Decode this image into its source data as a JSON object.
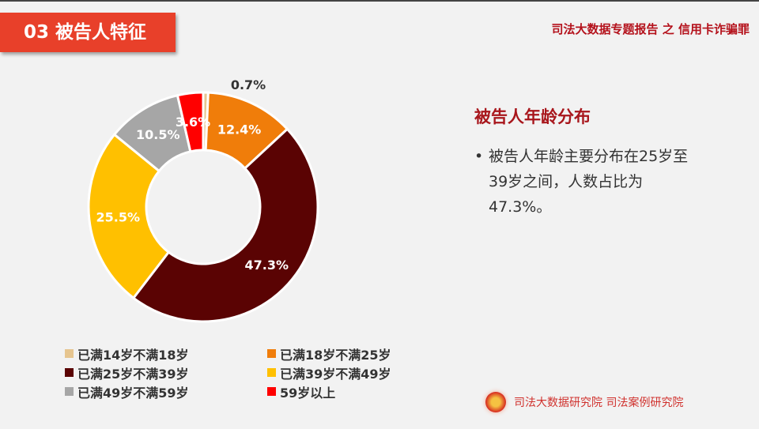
{
  "header": {
    "section_title": "03  被告人特征",
    "report_title": "司法大数据专题报告 之 信用卡诈骗罪"
  },
  "panel": {
    "title": "被告人年龄分布",
    "bullet": "被告人年龄主要分布在25岁至39岁之间，人数占比为47.3%。"
  },
  "footer": {
    "org_text": "司法大数据研究院  司法案例研究院",
    "emblem_icon": "court-emblem-icon"
  },
  "chart_data": {
    "type": "pie",
    "donut": true,
    "categories": [
      "已满14岁不满18岁",
      "已满18岁不满25岁",
      "已满25岁不满39岁",
      "已满39岁不满49岁",
      "已满49岁不满59岁",
      "59岁以上"
    ],
    "values": [
      0.7,
      12.4,
      47.3,
      25.5,
      10.5,
      3.6
    ],
    "labels": [
      "0.7%",
      "12.4%",
      "47.3%",
      "25.5%",
      "10.5%",
      "3.6%"
    ],
    "colors": [
      "#e6c58f",
      "#f07d0a",
      "#5a0303",
      "#ffc000",
      "#a6a6a6",
      "#ff0000"
    ],
    "legend_position": "bottom"
  }
}
